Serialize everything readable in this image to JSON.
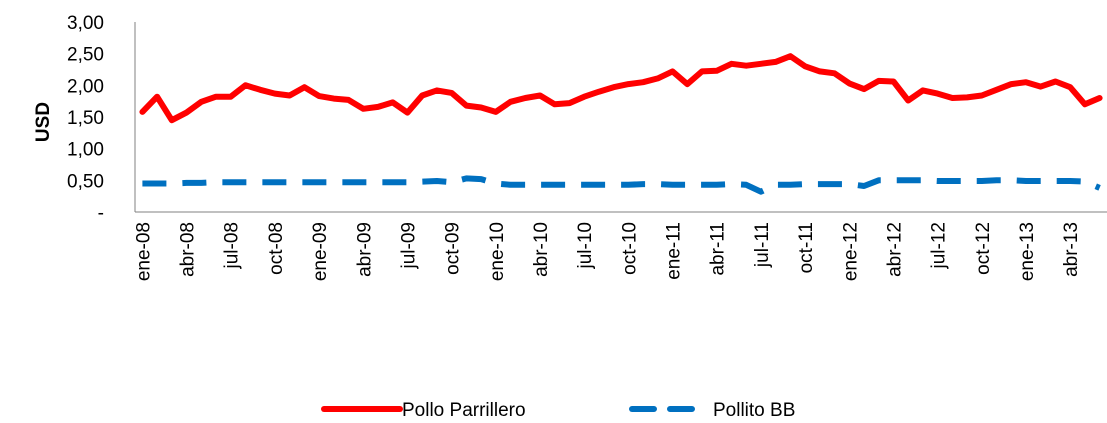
{
  "chart_data": {
    "type": "line",
    "ylabel": "USD",
    "ylim": [
      0,
      3
    ],
    "yticks": [
      "-",
      "0,50",
      "1,00",
      "1,50",
      "2,00",
      "2,50",
      "3,00"
    ],
    "x_tick_labels": [
      "ene-08",
      "abr-08",
      "jul-08",
      "oct-08",
      "ene-09",
      "abr-09",
      "jul-09",
      "oct-09",
      "ene-10",
      "abr-10",
      "jul-10",
      "oct-10",
      "ene-11",
      "abr-11",
      "jul-11",
      "oct-11",
      "ene-12",
      "abr-12",
      "jul-12",
      "oct-12",
      "ene-13",
      "abr-13"
    ],
    "legend_position": "bottom",
    "series": [
      {
        "name": "Pollo Parrillero",
        "color": "#FF0000",
        "style": "solid",
        "values": [
          1.58,
          1.82,
          1.45,
          1.57,
          1.74,
          1.82,
          1.82,
          2.0,
          1.93,
          1.87,
          1.84,
          1.97,
          1.83,
          1.79,
          1.77,
          1.63,
          1.66,
          1.73,
          1.57,
          1.84,
          1.92,
          1.88,
          1.68,
          1.65,
          1.58,
          1.74,
          1.8,
          1.84,
          1.7,
          1.72,
          1.82,
          1.9,
          1.97,
          2.02,
          2.05,
          2.11,
          2.22,
          2.02,
          2.22,
          2.23,
          2.34,
          2.31,
          2.34,
          2.37,
          2.46,
          2.3,
          2.22,
          2.19,
          2.03,
          1.94,
          2.07,
          2.06,
          1.76,
          1.92,
          1.87,
          1.8,
          1.81,
          1.84,
          1.93,
          2.02,
          2.05,
          1.98,
          2.06,
          1.97,
          1.7,
          1.8
        ]
      },
      {
        "name": "Pollito BB",
        "color": "#0070C0",
        "style": "dashed",
        "values": [
          0.45,
          0.45,
          0.45,
          0.46,
          0.46,
          0.47,
          0.47,
          0.47,
          0.47,
          0.47,
          0.47,
          0.47,
          0.47,
          0.47,
          0.47,
          0.47,
          0.47,
          0.47,
          0.47,
          0.48,
          0.49,
          0.47,
          0.53,
          0.52,
          0.45,
          0.43,
          0.43,
          0.43,
          0.43,
          0.43,
          0.43,
          0.43,
          0.43,
          0.43,
          0.44,
          0.44,
          0.43,
          0.43,
          0.43,
          0.43,
          0.44,
          0.43,
          0.32,
          0.43,
          0.43,
          0.44,
          0.44,
          0.44,
          0.44,
          0.41,
          0.5,
          0.5,
          0.5,
          0.5,
          0.49,
          0.49,
          0.49,
          0.49,
          0.5,
          0.5,
          0.49,
          0.49,
          0.49,
          0.49,
          0.48,
          0.38
        ]
      }
    ]
  }
}
